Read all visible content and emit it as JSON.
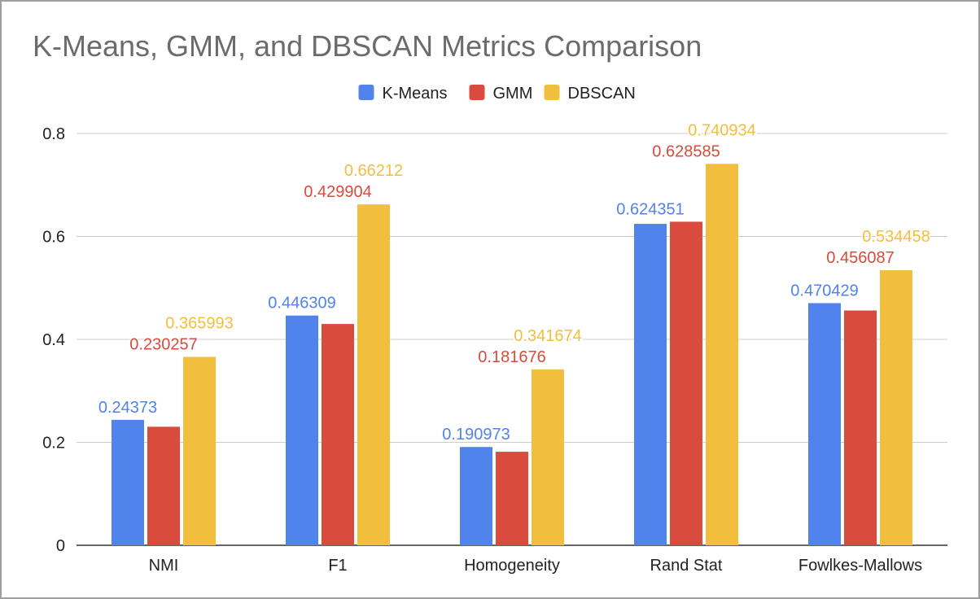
{
  "chart_data": {
    "type": "bar",
    "title": "K-Means, GMM, and DBSCAN Metrics Comparison",
    "xlabel": "",
    "ylabel": "",
    "categories": [
      "NMI",
      "F1",
      "Homogeneity",
      "Rand Stat",
      "Fowlkes-Mallows"
    ],
    "series": [
      {
        "name": "K-Means",
        "color": "#5083ec",
        "values": [
          0.24373,
          0.446309,
          0.190973,
          0.624351,
          0.470429
        ]
      },
      {
        "name": "GMM",
        "color": "#d84b3d",
        "values": [
          0.230257,
          0.429904,
          0.181676,
          0.628585,
          0.456087
        ]
      },
      {
        "name": "DBSCAN",
        "color": "#f2be3e",
        "values": [
          0.365993,
          0.66212,
          0.341674,
          0.740934,
          0.534458
        ]
      }
    ],
    "ylim": [
      0,
      0.8
    ],
    "yticks": [
      0,
      0.2,
      0.4,
      0.6,
      0.8
    ],
    "ytick_labels": [
      "0",
      "0.2",
      "0.4",
      "0.6",
      "0.8"
    ],
    "grid": true,
    "legend_position": "top-center"
  }
}
